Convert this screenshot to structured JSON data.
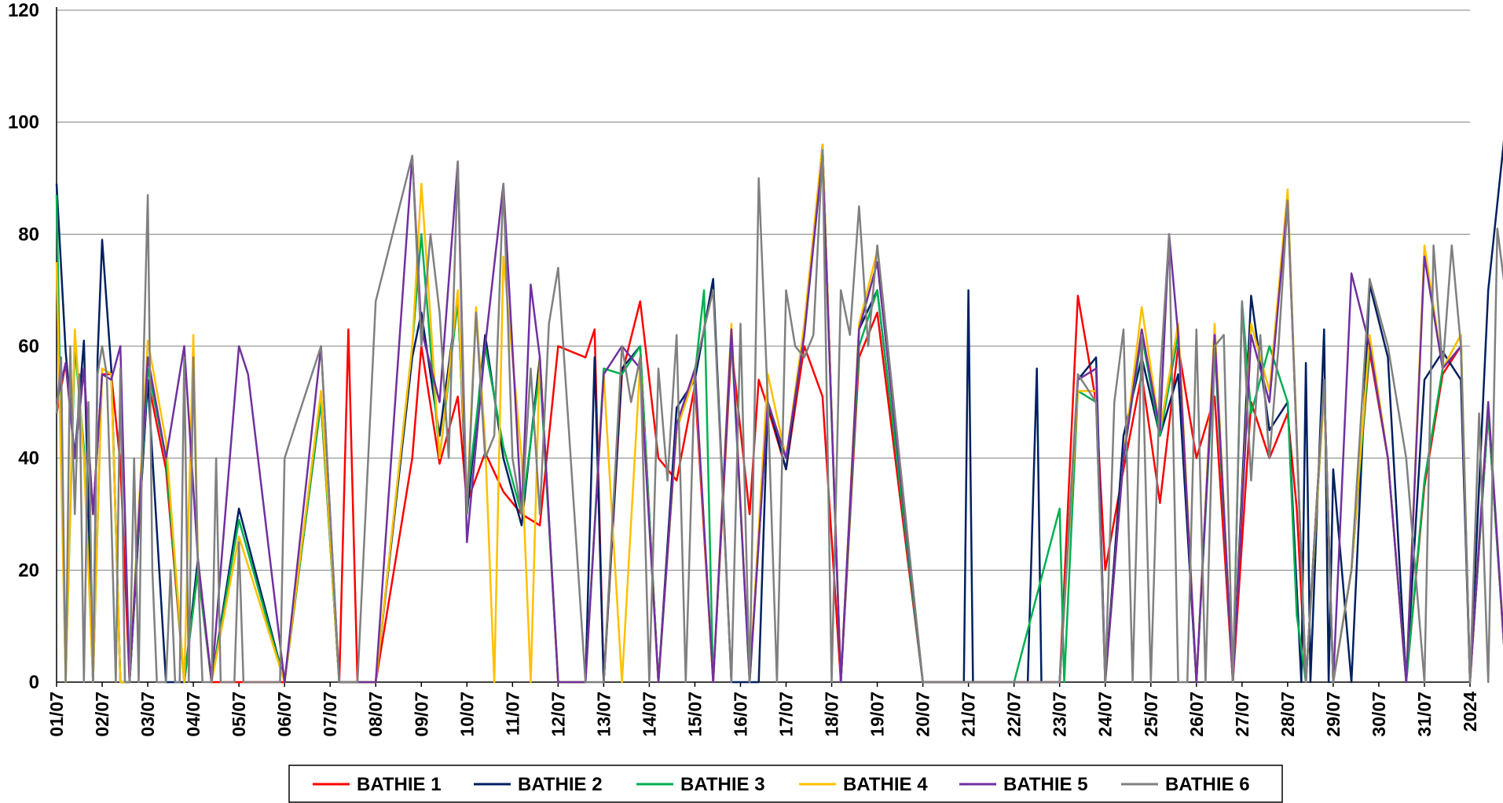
{
  "chart_data": {
    "type": "line",
    "ylim": [
      0,
      120
    ],
    "y_ticks": [
      "0",
      "20",
      "40",
      "60",
      "80",
      "100",
      "120"
    ],
    "x_ticks": [
      "01/07",
      "02/07",
      "03/07",
      "04/07",
      "05/07",
      "06/07",
      "07/07",
      "08/07",
      "09/07",
      "10/07",
      "11/07",
      "12/07",
      "13/07",
      "14/07",
      "15/07",
      "16/07",
      "17/07",
      "18/07",
      "19/07",
      "20/07",
      "21/07",
      "22/07",
      "23/07",
      "24/07",
      "25/07",
      "26/07",
      "27/07",
      "28/07",
      "29/07",
      "30/07",
      "31/07",
      "2024"
    ],
    "grid": true,
    "legend_position": "bottom",
    "series": [
      {
        "name": "BATHIE 1",
        "color": "#ff0000",
        "x": [
          0.0,
          0.2,
          0.4,
          0.6,
          0.8,
          1.0,
          1.2,
          1.4,
          1.6,
          2.0,
          2.4,
          2.8,
          3.1,
          3.4,
          4.0,
          5.0,
          5.8,
          6.2,
          6.4,
          6.6,
          7.0,
          7.8,
          8.0,
          8.4,
          8.8,
          9.0,
          9.4,
          9.8,
          10.2,
          10.6,
          11.0,
          11.6,
          11.8,
          12.0,
          12.4,
          12.8,
          13.2,
          13.6,
          14.0,
          14.4,
          14.8,
          15.2,
          15.4,
          15.6,
          16.0,
          16.4,
          16.8,
          17.2,
          17.6,
          18.0,
          19.0,
          20.0,
          21.0,
          22.0,
          22.4,
          22.8,
          23.0,
          23.4,
          23.8,
          24.2,
          24.6,
          25.0,
          25.4,
          25.8,
          26.2,
          26.6,
          27.0,
          27.2,
          27.4,
          27.8,
          28.0,
          28.4,
          28.8,
          29.2,
          29.6,
          30.0,
          30.4,
          30.8,
          31.0,
          31.4,
          31.8,
          31.95
        ],
        "y": [
          48,
          57,
          40,
          56,
          30,
          55,
          55,
          39,
          0,
          54,
          38,
          0,
          20,
          0,
          0,
          0,
          50,
          0,
          63,
          0,
          0,
          40,
          60,
          39,
          51,
          32,
          41,
          34,
          30,
          28,
          60,
          58,
          63,
          0,
          55,
          68,
          40,
          36,
          53,
          0,
          60,
          30,
          54,
          49,
          38,
          60,
          51,
          0,
          58,
          66,
          0,
          0,
          0,
          0,
          69,
          50,
          20,
          38,
          55,
          32,
          60,
          40,
          51,
          0,
          50,
          40,
          48,
          31,
          0,
          54,
          0,
          20,
          59,
          40,
          0,
          35,
          55,
          60,
          0,
          48,
          0,
          58
        ]
      },
      {
        "name": "BATHIE 2",
        "color": "#002060",
        "x": [
          0.0,
          0.2,
          0.4,
          0.6,
          0.8,
          0.9,
          1.0,
          1.2,
          1.4,
          1.6,
          2.0,
          2.4,
          2.8,
          3.1,
          3.4,
          4.0,
          5.0,
          5.8,
          6.2,
          6.6,
          7.0,
          7.8,
          8.0,
          8.4,
          8.8,
          9.0,
          9.4,
          9.8,
          10.2,
          10.6,
          11.0,
          11.6,
          11.8,
          12.0,
          12.4,
          12.8,
          13.2,
          13.6,
          14.0,
          14.4,
          14.8,
          15.2,
          15.4,
          15.6,
          16.0,
          16.4,
          16.8,
          17.2,
          17.6,
          18.0,
          19.0,
          19.9,
          20.0,
          20.1,
          21.3,
          21.5,
          21.6,
          22.0,
          22.4,
          22.8,
          23.0,
          23.4,
          23.8,
          24.2,
          24.6,
          25.0,
          25.4,
          25.8,
          26.2,
          26.6,
          27.0,
          27.3,
          27.4,
          27.5,
          27.8,
          27.9,
          28.0,
          28.4,
          28.8,
          29.2,
          29.6,
          30.0,
          30.4,
          30.8,
          31.0,
          31.4,
          31.8,
          31.95
        ],
        "y": [
          89,
          59,
          40,
          61,
          0,
          58,
          79,
          56,
          0,
          0,
          54,
          0,
          0,
          22,
          0,
          31,
          0,
          51,
          0,
          0,
          0,
          58,
          66,
          44,
          69,
          30,
          62,
          40,
          28,
          58,
          0,
          0,
          58,
          0,
          56,
          60,
          0,
          49,
          54,
          72,
          0,
          0,
          0,
          50,
          38,
          63,
          96,
          0,
          63,
          70,
          0,
          0,
          70,
          0,
          0,
          56,
          0,
          0,
          54,
          58,
          0,
          44,
          58,
          44,
          55,
          0,
          63,
          0,
          69,
          45,
          50,
          0,
          57,
          0,
          63,
          0,
          38,
          0,
          71,
          58,
          0,
          54,
          59,
          54,
          0,
          70,
          101,
          99
        ]
      },
      {
        "name": "BATHIE 3",
        "color": "#00b050",
        "x": [
          0.0,
          0.2,
          0.4,
          0.6,
          0.8,
          1.0,
          1.2,
          1.4,
          1.6,
          2.0,
          2.4,
          2.8,
          3.1,
          3.4,
          4.0,
          5.0,
          5.8,
          6.2,
          6.6,
          7.0,
          7.8,
          8.0,
          8.4,
          8.8,
          9.0,
          9.4,
          9.8,
          10.2,
          10.6,
          11.0,
          11.6,
          12.0,
          12.4,
          12.8,
          13.2,
          13.6,
          14.0,
          14.2,
          14.4,
          14.8,
          15.2,
          15.6,
          16.0,
          16.4,
          16.8,
          17.2,
          17.6,
          18.0,
          19.0,
          20.0,
          21.0,
          22.0,
          22.1,
          22.4,
          22.8,
          23.0,
          23.4,
          23.8,
          24.2,
          24.6,
          25.0,
          25.4,
          25.8,
          26.0,
          26.2,
          26.6,
          27.0,
          27.2,
          27.4,
          27.8,
          28.0,
          28.4,
          28.8,
          29.2,
          29.6,
          30.0,
          30.4,
          30.8,
          31.0,
          31.4,
          31.8,
          31.95
        ],
        "y": [
          87,
          0,
          60,
          42,
          0,
          56,
          55,
          0,
          0,
          56,
          40,
          0,
          20,
          0,
          29,
          0,
          50,
          0,
          0,
          0,
          60,
          80,
          40,
          68,
          33,
          60,
          42,
          30,
          56,
          0,
          0,
          56,
          55,
          60,
          0,
          45,
          55,
          70,
          0,
          62,
          0,
          50,
          40,
          62,
          94,
          0,
          60,
          70,
          0,
          0,
          0,
          31,
          0,
          52,
          50,
          0,
          40,
          62,
          44,
          62,
          0,
          60,
          0,
          68,
          48,
          60,
          50,
          12,
          0,
          52,
          0,
          20,
          60,
          40,
          0,
          36,
          56,
          62,
          0,
          48,
          0,
          62
        ]
      },
      {
        "name": "BATHIE 4",
        "color": "#ffc000",
        "x": [
          0.0,
          0.2,
          0.4,
          0.6,
          0.8,
          1.0,
          1.2,
          1.4,
          1.6,
          2.0,
          2.4,
          2.8,
          3.0,
          3.1,
          3.4,
          4.0,
          5.0,
          5.8,
          6.2,
          6.6,
          7.0,
          7.8,
          8.0,
          8.2,
          8.4,
          8.8,
          9.0,
          9.2,
          9.4,
          9.6,
          9.8,
          10.2,
          10.4,
          10.6,
          11.0,
          11.6,
          12.0,
          12.1,
          12.4,
          12.8,
          13.2,
          13.6,
          14.0,
          14.4,
          14.8,
          15.2,
          15.6,
          16.0,
          16.4,
          16.8,
          17.2,
          17.6,
          18.0,
          19.0,
          20.0,
          21.0,
          22.0,
          22.4,
          22.8,
          23.0,
          23.4,
          23.8,
          24.2,
          24.6,
          25.0,
          25.4,
          25.8,
          26.2,
          26.6,
          27.0,
          27.4,
          27.8,
          28.0,
          28.4,
          28.8,
          29.2,
          29.6,
          30.0,
          30.4,
          30.8,
          31.0,
          31.4,
          31.8,
          31.95
        ],
        "y": [
          75,
          0,
          63,
          40,
          0,
          56,
          55,
          0,
          0,
          61,
          43,
          0,
          62,
          22,
          0,
          26,
          0,
          52,
          0,
          0,
          0,
          60,
          89,
          65,
          40,
          70,
          32,
          67,
          43,
          0,
          76,
          40,
          0,
          58,
          0,
          0,
          55,
          41,
          0,
          57,
          0,
          45,
          55,
          0,
          64,
          0,
          55,
          40,
          64,
          96,
          0,
          64,
          77,
          0,
          0,
          0,
          0,
          52,
          52,
          0,
          40,
          67,
          45,
          64,
          0,
          64,
          0,
          64,
          52,
          88,
          0,
          52,
          0,
          20,
          62,
          40,
          0,
          78,
          56,
          62,
          0,
          50,
          0,
          100
        ]
      },
      {
        "name": "BATHIE 5",
        "color": "#7030a0",
        "x": [
          0.0,
          0.2,
          0.4,
          0.6,
          0.8,
          1.0,
          1.2,
          1.4,
          1.6,
          2.0,
          2.4,
          2.8,
          3.1,
          3.4,
          4.0,
          4.2,
          5.0,
          5.8,
          6.2,
          6.6,
          7.0,
          7.8,
          8.0,
          8.4,
          8.8,
          9.0,
          9.4,
          9.8,
          10.2,
          10.4,
          10.6,
          11.0,
          11.6,
          12.0,
          12.4,
          12.8,
          13.2,
          13.6,
          14.0,
          14.4,
          14.8,
          15.2,
          15.6,
          16.0,
          16.4,
          16.8,
          17.2,
          17.6,
          18.0,
          19.0,
          20.0,
          21.0,
          22.0,
          22.4,
          22.8,
          23.0,
          23.4,
          23.8,
          24.2,
          24.4,
          24.6,
          25.0,
          25.4,
          25.8,
          26.2,
          26.6,
          27.0,
          27.4,
          27.8,
          28.0,
          28.4,
          28.8,
          29.2,
          29.6,
          30.0,
          30.4,
          30.8,
          31.0,
          31.4,
          31.8,
          31.95
        ],
        "y": [
          50,
          57,
          40,
          56,
          30,
          55,
          54,
          60,
          0,
          58,
          40,
          60,
          22,
          0,
          60,
          55,
          0,
          60,
          0,
          0,
          0,
          94,
          63,
          50,
          93,
          25,
          60,
          89,
          30,
          71,
          58,
          0,
          0,
          55,
          60,
          56,
          0,
          46,
          56,
          0,
          63,
          0,
          50,
          40,
          62,
          94,
          0,
          63,
          75,
          0,
          0,
          0,
          0,
          54,
          56,
          0,
          40,
          63,
          45,
          80,
          62,
          0,
          62,
          0,
          62,
          50,
          86,
          0,
          54,
          0,
          73,
          60,
          40,
          0,
          76,
          56,
          60,
          0,
          50,
          0,
          97
        ]
      },
      {
        "name": "BATHIE 6",
        "color": "#808080",
        "x": [
          0.0,
          0.1,
          0.2,
          0.3,
          0.4,
          0.5,
          0.6,
          0.7,
          0.8,
          0.9,
          1.0,
          1.1,
          1.2,
          1.3,
          1.4,
          1.5,
          1.6,
          1.7,
          1.8,
          1.9,
          2.0,
          2.1,
          2.2,
          2.3,
          2.4,
          2.5,
          2.6,
          2.7,
          2.8,
          2.9,
          3.0,
          3.1,
          3.2,
          3.3,
          3.4,
          3.5,
          3.6,
          3.7,
          3.8,
          3.9,
          4.0,
          4.1,
          4.2,
          4.3,
          4.4,
          4.5,
          4.6,
          4.7,
          4.8,
          4.9,
          5.0,
          5.8,
          6.2,
          6.6,
          7.0,
          7.8,
          8.0,
          8.2,
          8.4,
          8.6,
          8.8,
          9.0,
          9.2,
          9.4,
          9.6,
          9.8,
          10.0,
          10.2,
          10.4,
          10.6,
          10.8,
          11.0,
          11.6,
          12.0,
          12.4,
          12.6,
          12.8,
          13.0,
          13.2,
          13.4,
          13.6,
          13.8,
          14.0,
          14.4,
          14.8,
          15.0,
          15.2,
          15.4,
          15.6,
          15.8,
          16.0,
          16.2,
          16.4,
          16.6,
          16.8,
          17.0,
          17.2,
          17.4,
          17.6,
          17.8,
          18.0,
          19.0,
          20.0,
          21.0,
          22.0,
          22.4,
          22.8,
          23.0,
          23.2,
          23.4,
          23.6,
          23.8,
          24.0,
          24.2,
          24.4,
          24.6,
          24.8,
          25.0,
          25.2,
          25.4,
          25.6,
          25.8,
          26.0,
          26.2,
          26.4,
          26.6,
          26.8,
          27.0,
          27.4,
          27.8,
          28.0,
          28.4,
          28.8,
          29.2,
          29.6,
          30.0,
          30.2,
          30.4,
          30.6,
          30.8,
          31.0,
          31.2,
          31.4,
          31.6,
          31.8,
          31.95
        ],
        "y": [
          48,
          58,
          0,
          60,
          30,
          55,
          0,
          50,
          0,
          55,
          60,
          55,
          30,
          0,
          56,
          0,
          0,
          40,
          0,
          55,
          87,
          20,
          0,
          0,
          0,
          20,
          0,
          0,
          58,
          0,
          58,
          20,
          0,
          0,
          0,
          40,
          0,
          0,
          0,
          0,
          25,
          0,
          0,
          0,
          0,
          0,
          0,
          0,
          0,
          0,
          40,
          60,
          0,
          0,
          68,
          94,
          60,
          80,
          66,
          40,
          93,
          30,
          66,
          40,
          44,
          89,
          40,
          30,
          56,
          30,
          64,
          74,
          0,
          0,
          60,
          50,
          58,
          0,
          56,
          36,
          62,
          0,
          56,
          70,
          0,
          64,
          0,
          90,
          50,
          0,
          70,
          60,
          58,
          62,
          95,
          0,
          70,
          62,
          85,
          60,
          78,
          0,
          0,
          0,
          0,
          55,
          50,
          0,
          50,
          63,
          0,
          62,
          0,
          54,
          80,
          0,
          0,
          63,
          0,
          60,
          62,
          0,
          68,
          36,
          62,
          40,
          60,
          86,
          0,
          54,
          0,
          20,
          72,
          60,
          40,
          0,
          78,
          56,
          78,
          60,
          0,
          48,
          0,
          81,
          68,
          100
        ]
      }
    ]
  }
}
